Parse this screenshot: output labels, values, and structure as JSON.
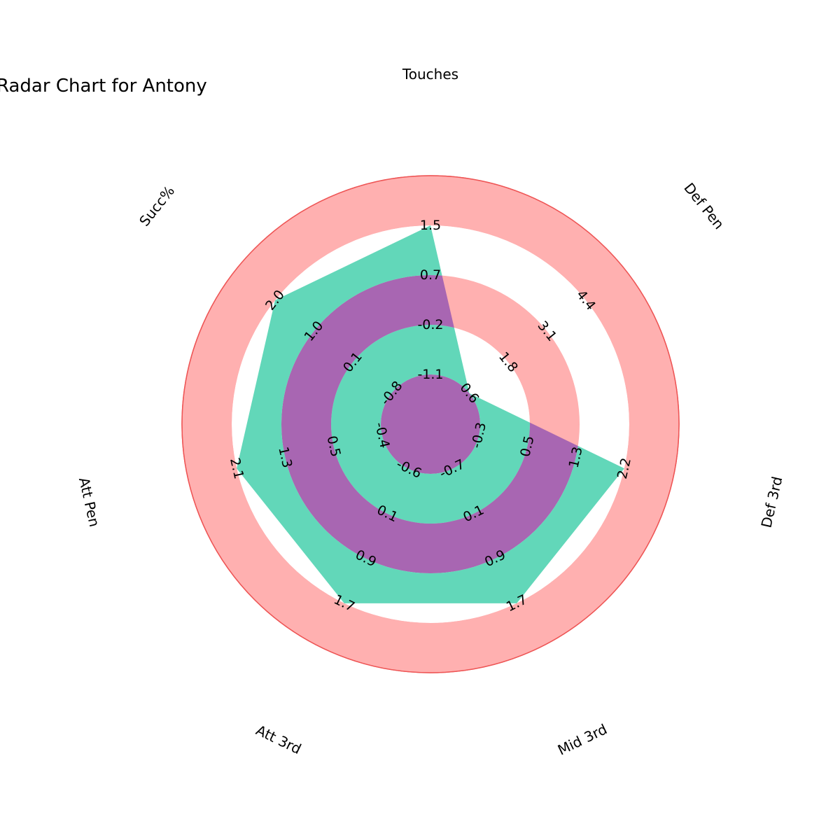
{
  "chart_data": {
    "type": "radar",
    "title": "Radar Chart for Antony",
    "params": [
      "Touches",
      "Def Pen",
      "Def 3rd",
      "Mid 3rd",
      "Att 3rd",
      "Att Pen",
      "Succ%"
    ],
    "player_values": [
      1.5,
      0.6,
      2.2,
      1.7,
      1.7,
      2.1,
      2.0
    ],
    "ranges": [
      {
        "param": "Touches",
        "ticks": [
          "-1.1",
          "-0.2",
          "0.7",
          "1.5"
        ]
      },
      {
        "param": "Def Pen",
        "ticks": [
          "0.6",
          "1.8",
          "3.1",
          "4.4"
        ]
      },
      {
        "param": "Def 3rd",
        "ticks": [
          "-0.3",
          "0.5",
          "1.3",
          "2.2"
        ]
      },
      {
        "param": "Mid 3rd",
        "ticks": [
          "-0.7",
          "0.1",
          "0.9",
          "1.7"
        ]
      },
      {
        "param": "Att 3rd",
        "ticks": [
          "-0.6",
          "0.1",
          "0.9",
          "1.7"
        ]
      },
      {
        "param": "Att Pen",
        "ticks": [
          "-0.4",
          "0.5",
          "1.3",
          "2.1"
        ]
      },
      {
        "param": "Succ%",
        "ticks": [
          "-0.8",
          "0.1",
          "1.0",
          "2.0"
        ]
      }
    ],
    "colors": {
      "outer_background": "#ffb0b0",
      "outer_edge": "#ee5555",
      "ring_a": "#62d7b9",
      "ring_b": "#a866b2",
      "empty": "#ffffff"
    }
  }
}
